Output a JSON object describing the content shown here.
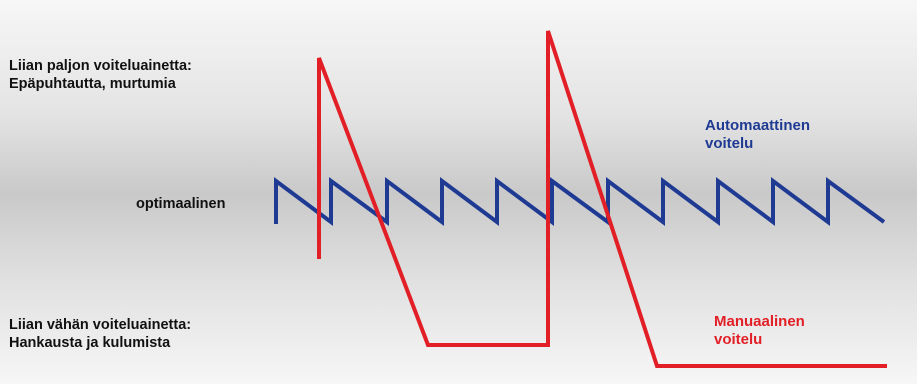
{
  "labels": {
    "too_much": {
      "line1": "Liian paljon voiteluainetta:",
      "line2": "Epäpuhtautta, murtumia"
    },
    "optimal": "optimaalinen",
    "too_little": {
      "line1": "Liian vähän voiteluainetta:",
      "line2": "Hankausta ja kulumista"
    },
    "automatic": {
      "line1": "Automaattinen",
      "line2": "voitelu"
    },
    "manual": {
      "line1": "Manuaalinen",
      "line2": "voitelu"
    }
  },
  "colors": {
    "automatic": "#1f3a93",
    "manual": "#e21f26"
  }
}
